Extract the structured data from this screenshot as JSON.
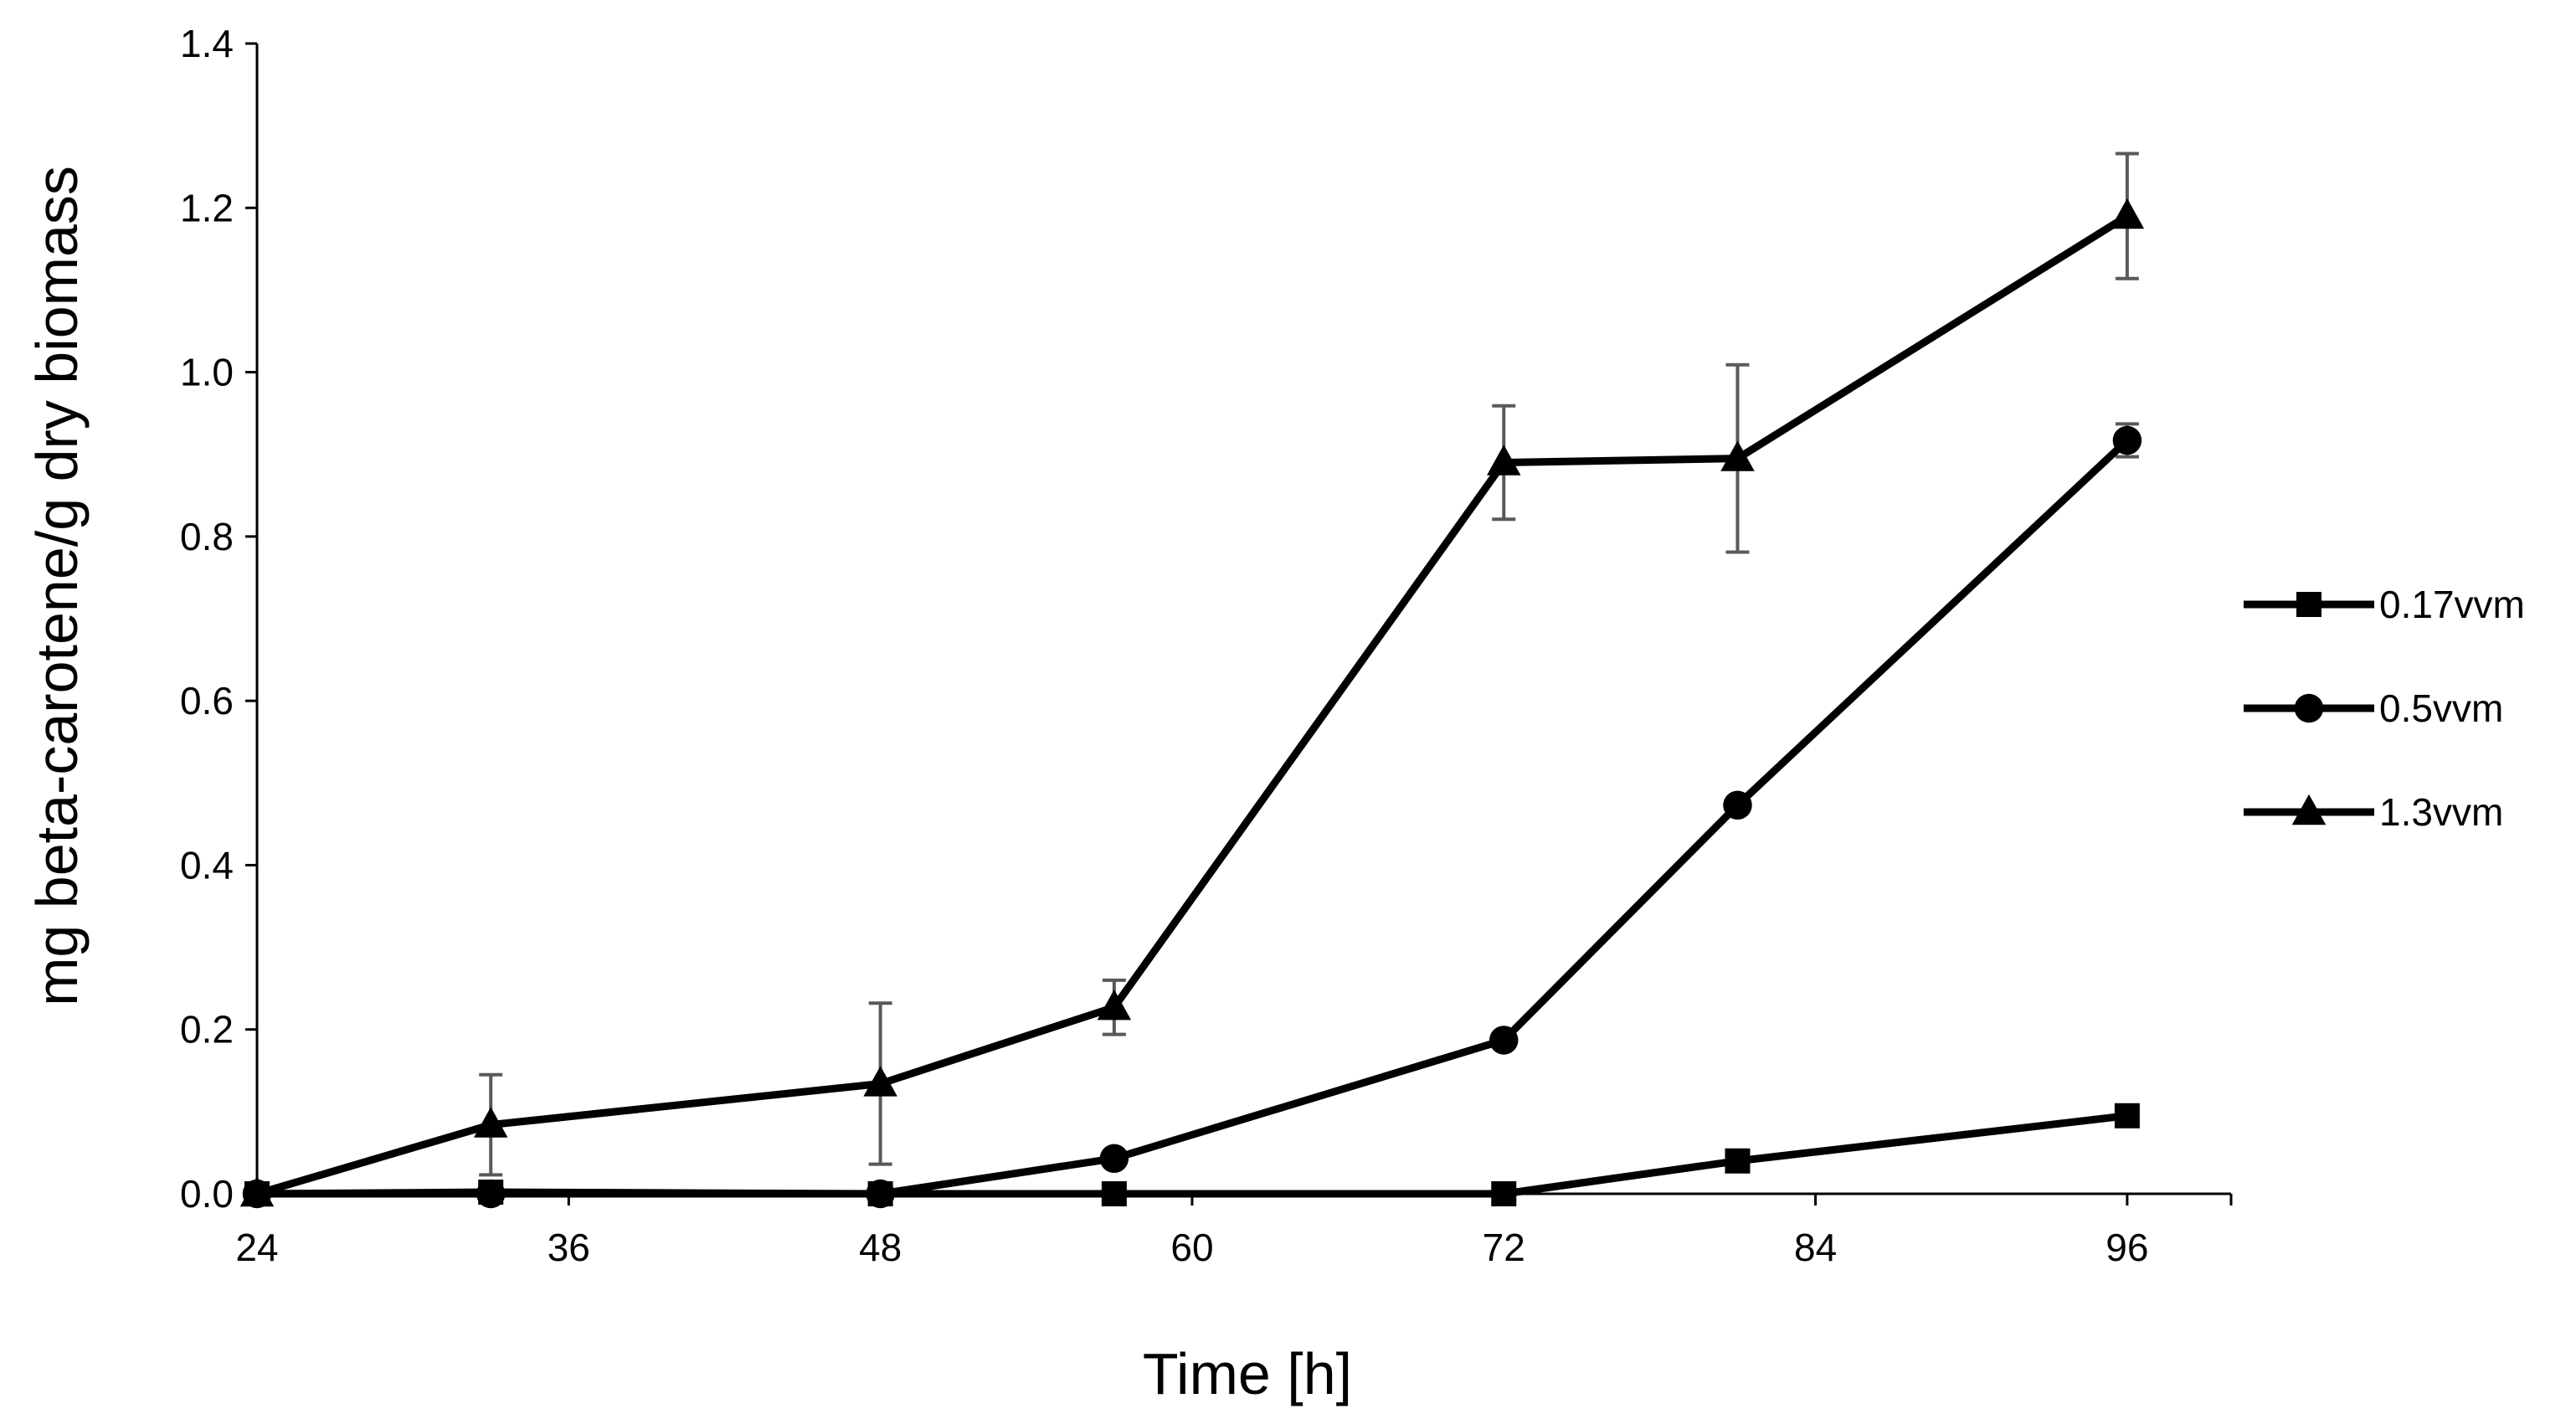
{
  "chart_data": {
    "type": "line",
    "title": "",
    "xlabel": "Time [h]",
    "ylabel": "mg beta-carotene/g dry biomass",
    "xlim": [
      24,
      100
    ],
    "ylim": [
      0,
      1.4
    ],
    "xticks": [
      "24",
      "36",
      "48",
      "60",
      "72",
      "84",
      "96"
    ],
    "yticks": [
      "0.0",
      "0.2",
      "0.4",
      "0.6",
      "0.8",
      "1.0",
      "1.2",
      "1.4"
    ],
    "grid": false,
    "legend_position": "right",
    "series": [
      {
        "name": "0.17vvm",
        "marker": "square",
        "x": [
          24,
          33,
          48,
          57,
          72,
          81,
          96
        ],
        "y": [
          0.0,
          0.002,
          0.0,
          0.0,
          0.0,
          0.04,
          0.095
        ],
        "error": [
          0,
          0,
          0,
          0,
          0,
          0,
          0
        ]
      },
      {
        "name": "0.5vvm",
        "marker": "circle",
        "x": [
          24,
          33,
          48,
          57,
          72,
          81,
          96
        ],
        "y": [
          0.0,
          0.0,
          0.0,
          0.043,
          0.187,
          0.473,
          0.917
        ],
        "error": [
          0,
          0,
          0,
          0,
          0,
          0,
          0.02
        ]
      },
      {
        "name": "1.3vvm",
        "marker": "triangle",
        "x": [
          24,
          33,
          48,
          57,
          72,
          81,
          96
        ],
        "y": [
          0.0,
          0.084,
          0.134,
          0.227,
          0.89,
          0.895,
          1.19
        ],
        "error": [
          0,
          0.061,
          0.098,
          0.033,
          0.069,
          0.114,
          0.076
        ]
      }
    ]
  }
}
